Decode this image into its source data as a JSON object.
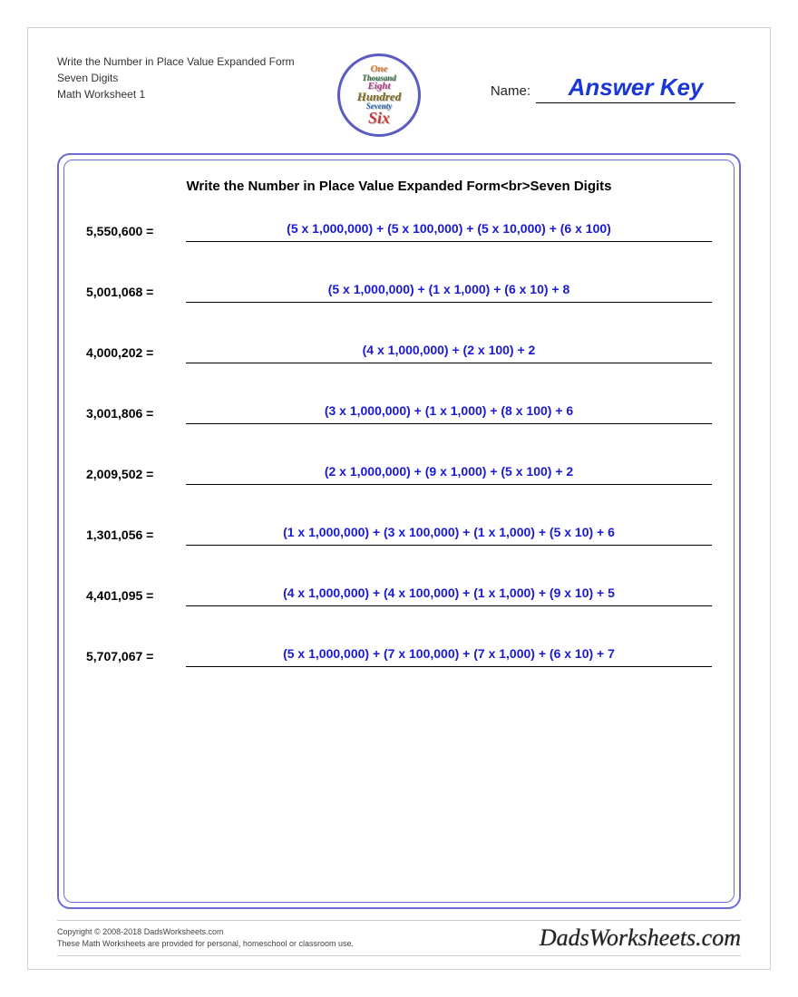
{
  "header": {
    "line1": "Write the Number in Place Value Expanded Form",
    "line2": "Seven Digits",
    "line3": "Math Worksheet 1",
    "name_label": "Name:",
    "name_value": "Answer Key",
    "logo_words": [
      "One",
      "Thousand",
      "Eight",
      "Hundred",
      "Seventy",
      "Six"
    ]
  },
  "worksheet": {
    "title": "Write the Number in Place Value Expanded Form<br>Seven Digits",
    "problems": [
      {
        "prompt": "5,550,600 =",
        "answer": "(5 x 1,000,000) + (5 x 100,000) + (5 x 10,000) + (6 x 100)"
      },
      {
        "prompt": "5,001,068 =",
        "answer": "(5 x 1,000,000) + (1 x 1,000) + (6 x 10) + 8"
      },
      {
        "prompt": "4,000,202 =",
        "answer": "(4 x 1,000,000) + (2 x 100) + 2"
      },
      {
        "prompt": "3,001,806 =",
        "answer": "(3 x 1,000,000) + (1 x 1,000) + (8 x 100) + 6"
      },
      {
        "prompt": "2,009,502 =",
        "answer": "(2 x 1,000,000) + (9 x 1,000) + (5 x 100) + 2"
      },
      {
        "prompt": "1,301,056 =",
        "answer": "(1 x 1,000,000) + (3 x 100,000) + (1 x 1,000) + (5 x 10) + 6"
      },
      {
        "prompt": "4,401,095 =",
        "answer": "(4 x 1,000,000) + (4 x 100,000) + (1 x 1,000) + (9 x 10) + 5"
      },
      {
        "prompt": "5,707,067 =",
        "answer": "(5 x 1,000,000) + (7 x 100,000) + (7 x 1,000) + (6 x 10) + 7"
      }
    ]
  },
  "footer": {
    "copyright": "Copyright © 2008-2018 DadsWorksheets.com",
    "note": "These Math Worksheets are provided for personal, homeschool or classroom use.",
    "brand": "DadsWorksheets.com"
  },
  "colors": {
    "answer_text": "#1a1ad6",
    "frame_border": "#6b6bd0",
    "name_value": "#1a37d6"
  }
}
